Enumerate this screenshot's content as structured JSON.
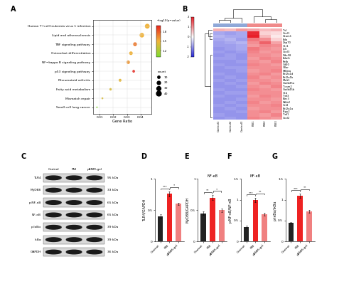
{
  "chart_data": [
    {
      "type": "scatter",
      "panel": "A",
      "categories": [
        "Human T−cell leukemia virus 1 infection",
        "Lipid and atherosclerosis",
        "TNF signaling pathway",
        "Osteoclast differentiation",
        "NF−kappa B signaling pathway",
        "p53 signaling pathway",
        "Rheumatoid arthritis",
        "Fatty acid metabolism",
        "Mismatch repair",
        "Small cell lung cancer"
      ],
      "x": [
        0.045,
        0.041,
        0.036,
        0.033,
        0.031,
        0.035,
        0.025,
        0.018,
        0.012,
        0.008
      ],
      "count": [
        40,
        36,
        25,
        22,
        20,
        12,
        14,
        10,
        6,
        4
      ],
      "pvalue": [
        1.5,
        1.5,
        1.7,
        1.5,
        1.6,
        2.0,
        1.45,
        1.4,
        1.4,
        1.0
      ],
      "xlabel": "Gene Ratio",
      "xlim": [
        0.005,
        0.048
      ],
      "xticks": [
        0.01,
        0.02,
        0.03,
        0.04
      ],
      "colorbar": {
        "title": "−log10(p−value)",
        "range": [
          1.0,
          2.0
        ],
        "ticks": [
          1.2,
          1.5,
          1.8
        ]
      },
      "size_legend": {
        "title": "count",
        "values": [
          10,
          20,
          30,
          40
        ]
      }
    },
    {
      "type": "heatmap",
      "panel": "B",
      "rows": [
        "Tnf",
        "Cxcl1",
        "Vcam1",
        "Eda",
        "Zap70",
        "Il1r1",
        "Lck",
        "Cxcl3",
        "Ddx58",
        "Eda2r",
        "Relb",
        "Cd40",
        "Cflar",
        "Nfkbia",
        "Bcl2a1d",
        "Bcl2a1b",
        "Malt1",
        "Gadd45a",
        "Ticam2",
        "Gadd45b",
        "Il1b",
        "Traf3",
        "Birc3",
        "Nfkb2",
        "Ccl4",
        "Bcl2a1a",
        "Ptgs2",
        "Traf1",
        "Cxcl2"
      ],
      "columns": [
        "Control1",
        "Control2",
        "Control3",
        "PNI1",
        "PNI2",
        "PNI3"
      ],
      "cells": [
        [
          0.7,
          0.6,
          0.9,
          0.8,
          0.6,
          0.7
        ],
        [
          -0.8,
          -0.9,
          -0.8,
          1.9,
          0.4,
          0.3
        ],
        [
          -0.7,
          -0.8,
          -0.8,
          2.0,
          0.6,
          0.2
        ],
        [
          -0.8,
          -0.7,
          -0.9,
          1.2,
          1.0,
          0.4
        ],
        [
          -0.9,
          -0.8,
          -0.7,
          1.0,
          1.4,
          0.8
        ],
        [
          -0.9,
          -0.9,
          -0.8,
          0.9,
          1.1,
          1.0
        ],
        [
          -1.0,
          -0.9,
          -0.8,
          1.2,
          1.0,
          0.9
        ],
        [
          -0.9,
          -1.0,
          -0.9,
          1.1,
          0.9,
          1.0
        ],
        [
          -1.0,
          -0.9,
          -1.0,
          1.0,
          1.0,
          0.9
        ],
        [
          -0.9,
          -0.9,
          -1.0,
          0.9,
          1.1,
          1.0
        ],
        [
          -1.0,
          -1.0,
          -0.9,
          1.0,
          0.9,
          1.1
        ],
        [
          -0.9,
          -1.0,
          -1.0,
          1.1,
          1.0,
          0.9
        ],
        [
          -1.0,
          -0.9,
          -0.9,
          1.0,
          1.0,
          1.0
        ],
        [
          -1.0,
          -1.0,
          -0.9,
          0.9,
          1.0,
          1.1
        ],
        [
          -0.9,
          -1.0,
          -1.0,
          1.0,
          1.1,
          0.9
        ],
        [
          -1.0,
          -0.9,
          -1.0,
          1.1,
          0.9,
          1.0
        ],
        [
          -0.9,
          -1.0,
          -0.9,
          1.0,
          1.0,
          0.9
        ],
        [
          -1.0,
          -0.9,
          -1.0,
          0.9,
          1.1,
          1.0
        ],
        [
          -1.0,
          -1.0,
          -0.9,
          1.0,
          0.9,
          1.1
        ],
        [
          -0.9,
          -1.0,
          -1.0,
          1.1,
          1.0,
          0.9
        ],
        [
          -1.0,
          -0.9,
          -0.9,
          1.0,
          1.0,
          1.0
        ],
        [
          -0.9,
          -1.0,
          -1.0,
          0.9,
          1.1,
          1.0
        ],
        [
          -1.0,
          -1.0,
          -0.9,
          1.0,
          1.0,
          0.9
        ],
        [
          -1.0,
          -0.9,
          -1.0,
          1.1,
          0.9,
          1.0
        ],
        [
          -0.9,
          -1.0,
          -0.9,
          1.0,
          1.0,
          1.1
        ],
        [
          -1.0,
          -0.9,
          -1.0,
          0.9,
          1.0,
          1.0
        ],
        [
          -1.0,
          -1.0,
          -0.9,
          1.0,
          1.1,
          0.9
        ],
        [
          -0.9,
          -1.0,
          -1.0,
          1.0,
          0.9,
          1.1
        ],
        [
          -1.0,
          -0.9,
          -1.0,
          1.1,
          1.0,
          0.9
        ]
      ],
      "colorbar": {
        "range": [
          -2,
          2
        ],
        "ticks": [
          -2,
          -1,
          0,
          1,
          2
        ]
      }
    },
    {
      "type": "bar",
      "panel": "D",
      "categories": [
        "Control",
        "PNI",
        "pBNM-gel"
      ],
      "values": [
        0.4,
        0.76,
        0.6
      ],
      "errors": [
        0.03,
        0.04,
        0.02
      ],
      "colors": [
        "#222222",
        "#ee2222",
        "#f08080"
      ],
      "ylabel": "TLR4/GAPDH",
      "ylim": [
        0,
        1
      ],
      "yticks": [
        0,
        0.5,
        1
      ],
      "significance": [
        {
          "from": "Control",
          "to": "PNI",
          "label": "***"
        },
        {
          "from": "PNI",
          "to": "pBNM-gel",
          "label": "*"
        }
      ]
    },
    {
      "type": "bar",
      "panel": "E",
      "title": "NF-κB",
      "categories": [
        "Control",
        "PNI",
        "pBNM-gel"
      ],
      "values": [
        0.45,
        0.7,
        0.5
      ],
      "errors": [
        0.03,
        0.04,
        0.03
      ],
      "colors": [
        "#222222",
        "#ee2222",
        "#f08080"
      ],
      "ylabel": "MyD88/GAPDH",
      "ylim": [
        0,
        1
      ],
      "yticks": [
        0,
        0.5,
        1
      ],
      "significance": [
        {
          "from": "Control",
          "to": "PNI",
          "label": "**"
        },
        {
          "from": "PNI",
          "to": "pBNM-gel",
          "label": "*"
        }
      ]
    },
    {
      "type": "bar",
      "panel": "F",
      "title": "NF-κB",
      "categories": [
        "Control",
        "PNI",
        "pBNM-gel"
      ],
      "values": [
        0.35,
        1.0,
        0.65
      ],
      "errors": [
        0.03,
        0.05,
        0.03
      ],
      "colors": [
        "#222222",
        "#ee2222",
        "#f08080"
      ],
      "ylabel": "p-NF-κB/NF-κB",
      "ylim": [
        0,
        1.5
      ],
      "yticks": [
        0,
        0.5,
        1,
        1.5
      ],
      "significance": [
        {
          "from": "Control",
          "to": "PNI",
          "label": "***"
        },
        {
          "from": "PNI",
          "to": "pBNM-gel",
          "label": "**"
        }
      ]
    },
    {
      "type": "bar",
      "panel": "G",
      "categories": [
        "Control",
        "PNI",
        "pBNM-gel"
      ],
      "values": [
        0.45,
        1.1,
        0.72
      ],
      "errors": [
        0.02,
        0.05,
        0.03
      ],
      "colors": [
        "#222222",
        "#ee2222",
        "#f08080"
      ],
      "ylabel": "p-IκBα/IκBα",
      "ylim": [
        0,
        1.5
      ],
      "yticks": [
        0,
        0.5,
        1,
        1.5
      ],
      "significance": [
        {
          "from": "Control",
          "to": "PNI",
          "label": "***"
        },
        {
          "from": "PNI",
          "to": "pBNM-gel",
          "label": "**"
        }
      ]
    }
  ],
  "blot": {
    "panel": "C",
    "lanes": [
      "Control",
      "PNI",
      "pBNM-gel"
    ],
    "rows": [
      {
        "label": "TLR4",
        "size": "95 kDa"
      },
      {
        "label": "MyD88",
        "size": "33 kDa"
      },
      {
        "label": "p-NF-κB",
        "size": "65 kDa"
      },
      {
        "label": "NF-κB",
        "size": "65 kDa"
      },
      {
        "label": "p-IκBα",
        "size": "39 kDa"
      },
      {
        "label": "IκBα",
        "size": "39 kDa"
      },
      {
        "label": "GAPDH",
        "size": "36 kDa"
      }
    ]
  }
}
